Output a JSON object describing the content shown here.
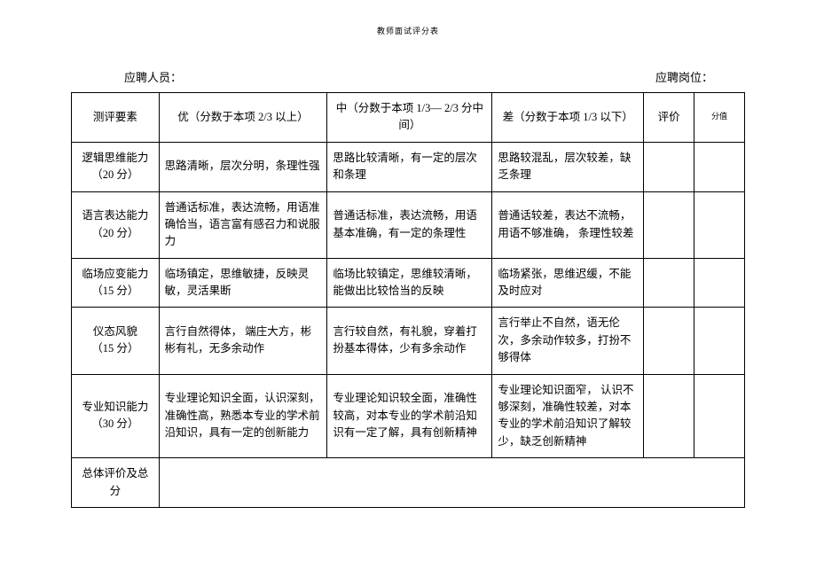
{
  "title": "教师面试评分表",
  "header": {
    "applicant_label": "应聘人员：",
    "position_label": "应聘岗位："
  },
  "columns": {
    "criterion": "测评要素",
    "excellent": "优（分数于本项  2/3 以上）",
    "medium": "中（分数于本项 1/3— 2/3 分中间）",
    "poor": "差（分数于本项  1/3 以下）",
    "eval": "评价",
    "score": "分值"
  },
  "rows": [
    {
      "criterion_l1": "逻辑思维能力",
      "criterion_l2": "（20 分）",
      "excellent": "思路清晰，层次分明，条理性强",
      "medium": "思路比较清晰，有一定的层次和条理",
      "poor": "思路较混乱，层次较差，缺乏条理"
    },
    {
      "criterion_l1": "语言表达能力",
      "criterion_l2": "（20 分）",
      "excellent": "普通话标准，表达流畅，用语准确恰当，语言富有感召力和说服力",
      "medium": "普通话标准，表达流畅，用语基本准确，有一定的条理性",
      "poor": "普通话较差，表达不流畅，用语不够准确，  条理性较差"
    },
    {
      "criterion_l1": "临场应变能力",
      "criterion_l2": "（15 分）",
      "excellent": "临场镇定，思维敏捷，反映灵敏，灵活果断",
      "medium": "临场比较镇定，思维较清晰，能做出比较恰当的反映",
      "poor": "临场紧张，思维迟缓，不能及时应对"
    },
    {
      "criterion_l1": "仪态风貌",
      "criterion_l2": "（15 分）",
      "excellent": "言行自然得体，  端庄大方，彬彬有礼，无多余动作",
      "medium": "言行较自然，有礼貌，穿着打扮基本得体，少有多余动作",
      "poor": "言行举止不自然，语无伦次，多余动作较多，打扮不够得体"
    },
    {
      "criterion_l1": "专业知识能力",
      "criterion_l2": "（30 分）",
      "excellent": "专业理论知识全面，认识深刻，准确性高，熟悉本专业的学术前沿知识，具有一定的创新能力",
      "medium": "专业理论知识较全面，准确性较高，对本专业的学术前沿知识有一定了解，具有创新精神",
      "poor": "专业理论知识面窄，  认识不够深刻，准确性较差，对本专业的学术前沿知识了解较少，缺乏创新精神"
    }
  ],
  "totals_label": "总体评价及总分",
  "colors": {
    "border": "#000000",
    "bg": "#ffffff",
    "text": "#000000"
  }
}
